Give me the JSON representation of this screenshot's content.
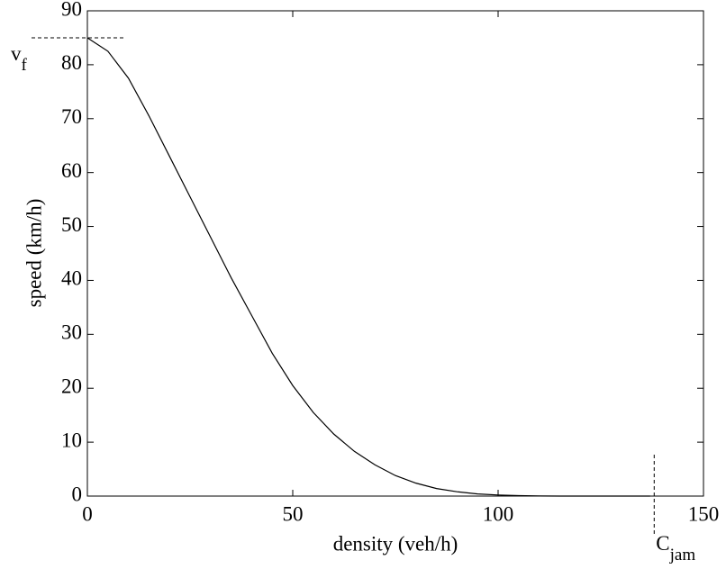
{
  "chart_data": {
    "type": "line",
    "xlabel": "density (veh/h)",
    "ylabel": "speed (km/h)",
    "x": [
      0,
      5,
      10,
      15,
      20,
      25,
      30,
      35,
      40,
      45,
      50,
      55,
      60,
      65,
      70,
      75,
      80,
      85,
      90,
      95,
      100,
      105,
      110,
      115,
      120,
      125,
      130,
      137
    ],
    "values": [
      85,
      82.5,
      77.5,
      70.5,
      63,
      55.5,
      48,
      40.5,
      33.5,
      26.5,
      20.5,
      15.5,
      11.5,
      8.3,
      5.8,
      3.8,
      2.4,
      1.4,
      0.8,
      0.4,
      0.2,
      0.08,
      0.02,
      0,
      0,
      0,
      0,
      0
    ],
    "color": "#000000",
    "xlim": [
      0,
      150
    ],
    "xticks": [
      0,
      50,
      100,
      150
    ],
    "ylim": [
      0,
      90
    ],
    "yticks": [
      0,
      10,
      20,
      30,
      40,
      50,
      60,
      70,
      80,
      90
    ],
    "annotations": [
      {
        "base": "v",
        "sub": "f",
        "axis": "y",
        "value": 85
      },
      {
        "base": "C",
        "sub": "jam",
        "axis": "x",
        "value": 138
      }
    ]
  }
}
